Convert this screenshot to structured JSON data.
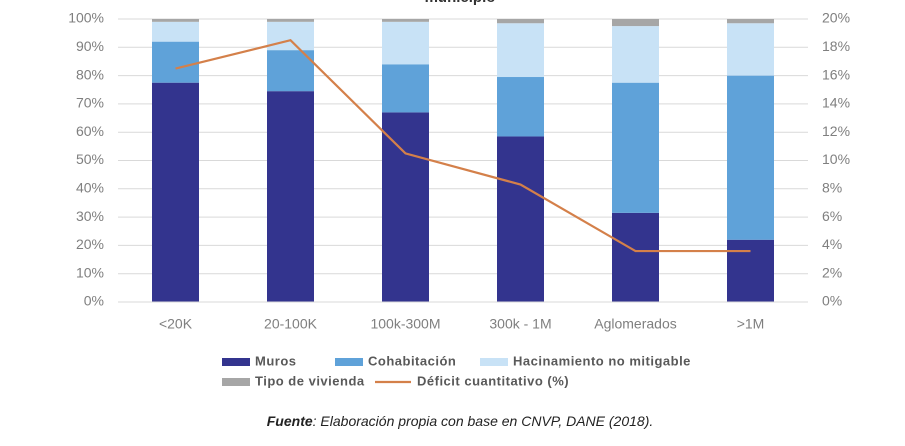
{
  "chart_data": {
    "type": "bar",
    "title": "municipio",
    "categories": [
      "<20K",
      "20-100K",
      "100k-300M",
      "300k - 1M",
      "Aglomerados",
      ">1M"
    ],
    "stacked": true,
    "series": [
      {
        "name": "Muros",
        "color": "#33348e",
        "values": [
          77.5,
          74.5,
          67,
          58.5,
          31.5,
          22
        ]
      },
      {
        "name": "Cohabitación",
        "color": "#5fa2d9",
        "values": [
          14.5,
          14.5,
          17,
          21,
          46,
          58
        ]
      },
      {
        "name": "Hacinamiento no mitigable",
        "color": "#c8e2f6",
        "values": [
          7,
          10,
          15,
          19,
          20,
          18.5
        ]
      },
      {
        "name": "Tipo de vivienda",
        "color": "#a6a6a6",
        "values": [
          1,
          1,
          1,
          1.5,
          2.5,
          1.5
        ]
      },
      {
        "name": "Déficit cuantitativo (%)",
        "color": "#d4804a",
        "type": "line",
        "axis": "y2",
        "values": [
          16.5,
          18.5,
          10.5,
          8.3,
          3.6,
          3.6
        ]
      }
    ],
    "ylim": [
      0,
      100
    ],
    "yticks": [
      {
        "value": 0,
        "label": "0%"
      },
      {
        "value": 10,
        "label": "10%"
      },
      {
        "value": 20,
        "label": "20%"
      },
      {
        "value": 30,
        "label": "30%"
      },
      {
        "value": 40,
        "label": "40%"
      },
      {
        "value": 50,
        "label": "50%"
      },
      {
        "value": 60,
        "label": "60%"
      },
      {
        "value": 70,
        "label": "70%"
      },
      {
        "value": 80,
        "label": "80%"
      },
      {
        "value": 90,
        "label": "90%"
      },
      {
        "value": 100,
        "label": "100%"
      }
    ],
    "y2lim": [
      0,
      20
    ],
    "y2ticks": [
      {
        "value": 0,
        "label": "0%"
      },
      {
        "value": 2,
        "label": "2%"
      },
      {
        "value": 4,
        "label": "4%"
      },
      {
        "value": 6,
        "label": "6%"
      },
      {
        "value": 8,
        "label": "8%"
      },
      {
        "value": 10,
        "label": "10%"
      },
      {
        "value": 12,
        "label": "12%"
      },
      {
        "value": 14,
        "label": "14%"
      },
      {
        "value": 16,
        "label": "16%"
      },
      {
        "value": 18,
        "label": "18%"
      },
      {
        "value": 20,
        "label": "20%"
      }
    ],
    "grid": true,
    "legend": "bottom",
    "source_label": "Fuente",
    "source_text": ": Elaboración propia con base en CNVP, DANE (2018)."
  }
}
